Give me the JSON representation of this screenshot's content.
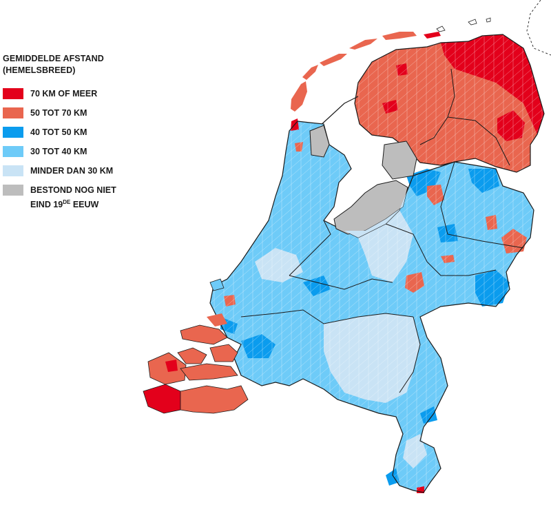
{
  "legend": {
    "title_line1": "GEMIDDELDE AFSTAND",
    "title_line2": "(HEMELSBREED)",
    "items": [
      {
        "label": "70 KM OF MEER",
        "color": "#e3001b"
      },
      {
        "label": "50 TOT 70 KM",
        "color": "#e9664f"
      },
      {
        "label": "40 TOT 50 KM",
        "color": "#0b9cee"
      },
      {
        "label": "30 TOT 40 KM",
        "color": "#6ecbf8"
      },
      {
        "label": "MINDER DAN 30 KM",
        "color": "#c9e3f5"
      },
      {
        "label_line1": "BESTOND NOG NIET",
        "label_line2_prefix": "EIND 19",
        "label_line2_sup": "DE",
        "label_line2_suffix": " EEUW",
        "color": "#bdbdbd"
      }
    ]
  },
  "map": {
    "country": "Netherlands",
    "border_color": "#1a1a1a",
    "municipality_line_color": "#ffffff"
  }
}
